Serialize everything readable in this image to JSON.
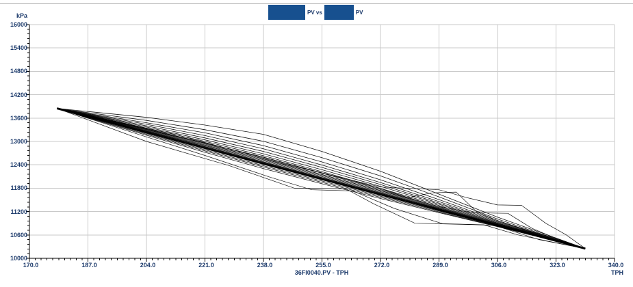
{
  "window": {
    "bg_color": "#ffffff",
    "top_rule_color": "#b6b6b6"
  },
  "title": {
    "redacted_box_color": "#17508f",
    "tag1_label": "PV vs",
    "tag2_label": "PV"
  },
  "axes": {
    "label_color": "#1c3a6b",
    "grid_color": "#c9c9c9",
    "axis_color": "#000000",
    "y": {
      "unit_label": "kPa",
      "tick_labels": [
        "16000",
        "15400",
        "14800",
        "14200",
        "13600",
        "13000",
        "12400",
        "11800",
        "11200",
        "10600",
        "10000"
      ],
      "tick_values": [
        16000,
        15400,
        14800,
        14200,
        13600,
        13000,
        12400,
        11800,
        11200,
        10600,
        10000
      ],
      "minor_step": 120
    },
    "x": {
      "unit_label": "TPH",
      "axis_label": "36FI0040.PV - TPH",
      "tick_labels": [
        "170.0",
        "187.0",
        "204.0",
        "221.0",
        "238.0",
        "255.0",
        "272.0",
        "289.0",
        "306.0",
        "323.0",
        "340.0"
      ],
      "tick_values": [
        170,
        187,
        204,
        221,
        238,
        255,
        272,
        289,
        306,
        323,
        340
      ],
      "minor_step": 1.7
    }
  },
  "chart_data": {
    "type": "line",
    "title": "[redacted tag].PV vs [redacted tag].PV",
    "xlabel": "36FI0040.PV - TPH",
    "ylabel": "kPa",
    "xlim": [
      170,
      340
    ],
    "ylim": [
      10000,
      16000
    ],
    "x_major_step": 17,
    "y_major_step": 600,
    "grid": true,
    "legend": "none",
    "line_color": "#000000",
    "description": "Dense hysteresis band of many overlapping pressure-vs-flow cycle traces descending from about (178 TPH, 13850 kPa) to (332 TPH, 10250 kPa), with stepped lower outliers and upper bump excursions near 290-315 TPH.",
    "series": [
      {
        "name": "trace-01",
        "width": 0.8,
        "x": [
          178,
          187,
          204,
          221,
          238,
          255,
          272,
          289,
          306,
          323,
          331.5
        ],
        "y": [
          13850,
          13769,
          13620,
          13421,
          13183,
          12744,
          12235,
          11647,
          11058,
          10519,
          10250
        ]
      },
      {
        "name": "trace-02",
        "width": 0.8,
        "x": [
          178,
          187,
          204,
          221,
          238,
          255,
          272,
          289,
          306,
          323,
          331.5
        ],
        "y": [
          13850,
          13739,
          13540,
          13301,
          13003,
          12584,
          12115,
          11577,
          11008,
          10499,
          10250
        ]
      },
      {
        "name": "trace-03",
        "width": 0.8,
        "x": [
          178,
          187,
          204,
          221,
          238,
          255,
          272,
          289,
          306,
          323,
          331.5
        ],
        "y": [
          13850,
          13719,
          13480,
          13221,
          12893,
          12474,
          12015,
          11507,
          10968,
          10489,
          10250
        ]
      },
      {
        "name": "trace-04",
        "width": 0.8,
        "x": [
          178,
          187,
          204,
          221,
          238,
          255,
          272,
          289,
          306,
          323,
          331.5
        ],
        "y": [
          13850,
          13709,
          13440,
          13151,
          12813,
          12394,
          11945,
          11457,
          10948,
          10479,
          10250
        ]
      },
      {
        "name": "trace-05",
        "width": 0.8,
        "x": [
          178,
          187,
          204,
          221,
          238,
          255,
          272,
          289,
          306,
          323,
          331.5
        ],
        "y": [
          13850,
          13699,
          13400,
          13091,
          12743,
          12334,
          11895,
          11417,
          10928,
          10474,
          10250
        ]
      },
      {
        "name": "trace-06",
        "width": 0.8,
        "x": [
          178,
          187,
          204,
          221,
          238,
          255,
          272,
          289,
          306,
          323,
          331.5
        ],
        "y": [
          13850,
          13689,
          13370,
          13041,
          12683,
          12274,
          11845,
          11387,
          10908,
          10469,
          10250
        ]
      },
      {
        "name": "trace-07",
        "width": 0.8,
        "x": [
          178,
          187,
          204,
          221,
          238,
          255,
          272,
          289,
          306,
          323,
          331.5
        ],
        "y": [
          13850,
          13679,
          13340,
          13001,
          12633,
          12224,
          11795,
          11357,
          10898,
          10464,
          10250
        ]
      },
      {
        "name": "trace-08",
        "width": 0.8,
        "x": [
          178,
          187,
          204,
          221,
          238,
          255,
          272,
          289,
          306,
          323,
          331.5
        ],
        "y": [
          13850,
          13669,
          13320,
          12961,
          12593,
          12184,
          11765,
          11327,
          10888,
          10459,
          10250
        ]
      },
      {
        "name": "trace-09",
        "width": 0.8,
        "x": [
          178,
          187,
          204,
          221,
          238,
          255,
          272,
          289,
          306,
          323,
          331.5
        ],
        "y": [
          13850,
          13664,
          13300,
          12931,
          12553,
          12149,
          11735,
          11307,
          10878,
          10457,
          10250
        ]
      },
      {
        "name": "trace-10",
        "width": 0.8,
        "x": [
          178,
          187,
          204,
          221,
          238,
          255,
          272,
          289,
          306,
          323,
          331.5
        ],
        "y": [
          13850,
          13659,
          13285,
          12911,
          12528,
          12124,
          11710,
          11292,
          10868,
          10454,
          10250
        ]
      },
      {
        "name": "trace-11",
        "width": 0.8,
        "x": [
          178,
          187,
          204,
          221,
          238,
          255,
          272,
          289,
          306,
          323,
          331.5
        ],
        "y": [
          13850,
          13654,
          13270,
          12891,
          12503,
          12099,
          11690,
          11277,
          10863,
          10453,
          10250
        ]
      },
      {
        "name": "trace-12",
        "width": 0.8,
        "x": [
          178,
          187,
          204,
          221,
          238,
          255,
          272,
          289,
          306,
          323,
          331.5
        ],
        "y": [
          13850,
          13649,
          13260,
          12871,
          12478,
          12076,
          11673,
          11265,
          10856,
          10451,
          10250
        ]
      },
      {
        "name": "trace-core",
        "width": 3.0,
        "x": [
          178,
          187,
          204,
          221,
          238,
          255,
          272,
          289,
          306,
          323,
          331.5
        ],
        "y": [
          13850,
          13639,
          13240,
          12841,
          12443,
          12044,
          11645,
          11247,
          10848,
          10449,
          10250
        ]
      },
      {
        "name": "trace-core-2",
        "width": 1.6,
        "x": [
          178,
          187,
          204,
          221,
          238,
          255,
          272,
          289,
          306,
          323,
          331.5
        ],
        "y": [
          13850,
          13634,
          13230,
          12826,
          12426,
          12028,
          11631,
          11238,
          10844,
          10448,
          10250
        ]
      },
      {
        "name": "trace-14",
        "width": 0.8,
        "x": [
          178,
          187,
          204,
          221,
          238,
          255,
          272,
          289,
          306,
          323,
          331.5
        ],
        "y": [
          13850,
          13629,
          13220,
          12811,
          12408,
          12012,
          11617,
          11229,
          10840,
          10447,
          10250
        ]
      },
      {
        "name": "trace-15",
        "width": 0.8,
        "x": [
          178,
          187,
          204,
          221,
          238,
          255,
          272,
          289,
          306,
          323,
          331.5
        ],
        "y": [
          13850,
          13624,
          13205,
          12786,
          12378,
          11984,
          11595,
          11212,
          10833,
          10445,
          10250
        ]
      },
      {
        "name": "trace-16",
        "width": 0.8,
        "x": [
          178,
          187,
          204,
          221,
          238,
          255,
          272,
          289,
          306,
          323,
          331.5
        ],
        "y": [
          13850,
          13614,
          13185,
          12756,
          12343,
          11949,
          11565,
          11192,
          10823,
          10443,
          10250
        ]
      },
      {
        "name": "trace-17",
        "width": 0.8,
        "x": [
          178,
          187,
          204,
          221,
          238,
          255,
          272,
          289,
          306,
          323,
          331.5
        ],
        "y": [
          13850,
          13604,
          13160,
          12721,
          12303,
          11914,
          11535,
          11172,
          10813,
          10439,
          10250
        ]
      },
      {
        "name": "outlier-step-1",
        "width": 0.7,
        "x": [
          178,
          204,
          228,
          247,
          262,
          270,
          282,
          296,
          305,
          318,
          331.5
        ],
        "y": [
          13850,
          13000,
          12380,
          11800,
          11780,
          11400,
          10900,
          10870,
          10850,
          10480,
          10250
        ]
      },
      {
        "name": "outlier-step-2",
        "width": 0.7,
        "x": [
          178,
          200,
          221,
          240,
          252,
          264,
          276,
          290,
          302,
          312,
          324,
          331.5
        ],
        "y": [
          13850,
          13230,
          12640,
          12080,
          11760,
          11730,
          11280,
          10890,
          10860,
          10600,
          10380,
          10250
        ]
      },
      {
        "name": "bump-1",
        "width": 0.7,
        "x": [
          178,
          204,
          238,
          272,
          280,
          287,
          294,
          300,
          306,
          315,
          323,
          331.5
        ],
        "y": [
          13850,
          13330,
          12600,
          11790,
          11560,
          11680,
          11700,
          11190,
          10970,
          10700,
          10520,
          10250
        ]
      },
      {
        "name": "bump-2",
        "width": 0.7,
        "x": [
          178,
          212,
          246,
          272,
          289,
          297,
          306,
          313,
          320,
          326,
          331.5
        ],
        "y": [
          13850,
          13190,
          12380,
          11830,
          11760,
          11560,
          11370,
          11360,
          10900,
          10600,
          10250
        ]
      },
      {
        "name": "bump-3",
        "width": 0.7,
        "x": [
          178,
          221,
          255,
          289,
          298,
          305,
          309,
          316,
          323,
          331.5
        ],
        "y": [
          13850,
          12950,
          12150,
          11330,
          11180,
          11160,
          11155,
          10770,
          10510,
          10250
        ]
      }
    ]
  }
}
